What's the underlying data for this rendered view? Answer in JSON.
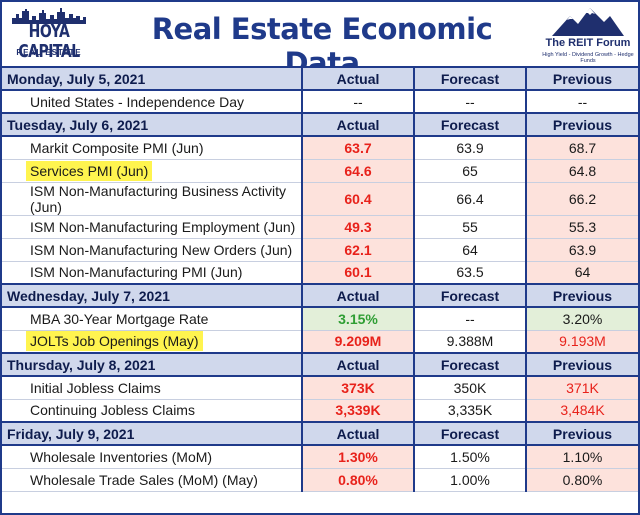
{
  "header": {
    "title": "Real Estate Economic Data",
    "left_logo": {
      "name": "HOYA CAPITAL",
      "sub": "REAL ESTATE"
    },
    "right_logo": {
      "name": "The REIT Forum",
      "tagline": "High Yield - Dividend Growth - Hedge Funds"
    }
  },
  "columns": {
    "actual": "Actual",
    "forecast": "Forecast",
    "previous": "Previous"
  },
  "days": [
    {
      "label": "Monday, July 5, 2021",
      "events": [
        {
          "name": "United States - Independence Day",
          "actual": "--",
          "forecast": "--",
          "previous": "--",
          "highlight": false,
          "actual_style": "",
          "previous_style": ""
        }
      ]
    },
    {
      "label": "Tuesday, July 6, 2021",
      "events": [
        {
          "name": "Markit Composite PMI (Jun)",
          "actual": "63.7",
          "forecast": "63.9",
          "previous": "68.7",
          "highlight": false,
          "actual_style": "red",
          "previous_style": "neutral"
        },
        {
          "name": "Services PMI (Jun)",
          "actual": "64.6",
          "forecast": "65",
          "previous": "64.8",
          "highlight": true,
          "actual_style": "red",
          "previous_style": "neutral"
        },
        {
          "name": "ISM Non-Manufacturing Business Activity (Jun)",
          "actual": "60.4",
          "forecast": "66.4",
          "previous": "66.2",
          "highlight": false,
          "actual_style": "red",
          "previous_style": "neutral"
        },
        {
          "name": "ISM Non-Manufacturing Employment (Jun)",
          "actual": "49.3",
          "forecast": "55",
          "previous": "55.3",
          "highlight": false,
          "actual_style": "red",
          "previous_style": "neutral"
        },
        {
          "name": "ISM Non-Manufacturing New Orders (Jun)",
          "actual": "62.1",
          "forecast": "64",
          "previous": "63.9",
          "highlight": false,
          "actual_style": "red",
          "previous_style": "neutral"
        },
        {
          "name": "ISM Non-Manufacturing PMI (Jun)",
          "actual": "60.1",
          "forecast": "63.5",
          "previous": "64",
          "highlight": false,
          "actual_style": "red",
          "previous_style": "neutral"
        }
      ]
    },
    {
      "label": "Wednesday, July 7, 2021",
      "events": [
        {
          "name": "MBA 30-Year Mortgage Rate",
          "actual": "3.15%",
          "forecast": "--",
          "previous": "3.20%",
          "highlight": false,
          "actual_style": "green",
          "previous_style": "green"
        },
        {
          "name": "JOLTs Job Openings (May)",
          "actual": "9.209M",
          "forecast": "9.388M",
          "previous": "9.193M",
          "highlight": true,
          "actual_style": "red",
          "previous_style": "red"
        }
      ]
    },
    {
      "label": "Thursday, July 8, 2021",
      "events": [
        {
          "name": "Initial Jobless Claims",
          "actual": "373K",
          "forecast": "350K",
          "previous": "371K",
          "highlight": false,
          "actual_style": "red",
          "previous_style": "red"
        },
        {
          "name": "Continuing Jobless Claims",
          "actual": "3,339K",
          "forecast": "3,335K",
          "previous": "3,484K",
          "highlight": false,
          "actual_style": "red",
          "previous_style": "red"
        }
      ]
    },
    {
      "label": "Friday, July 9, 2021",
      "events": [
        {
          "name": "Wholesale Inventories (MoM)",
          "actual": "1.30%",
          "forecast": "1.50%",
          "previous": "1.10%",
          "highlight": false,
          "actual_style": "red",
          "previous_style": "neutral"
        },
        {
          "name": "Wholesale Trade Sales (MoM) (May)",
          "actual": "0.80%",
          "forecast": "1.00%",
          "previous": "0.80%",
          "highlight": false,
          "actual_style": "red",
          "previous_style": "neutral"
        }
      ]
    }
  ]
}
